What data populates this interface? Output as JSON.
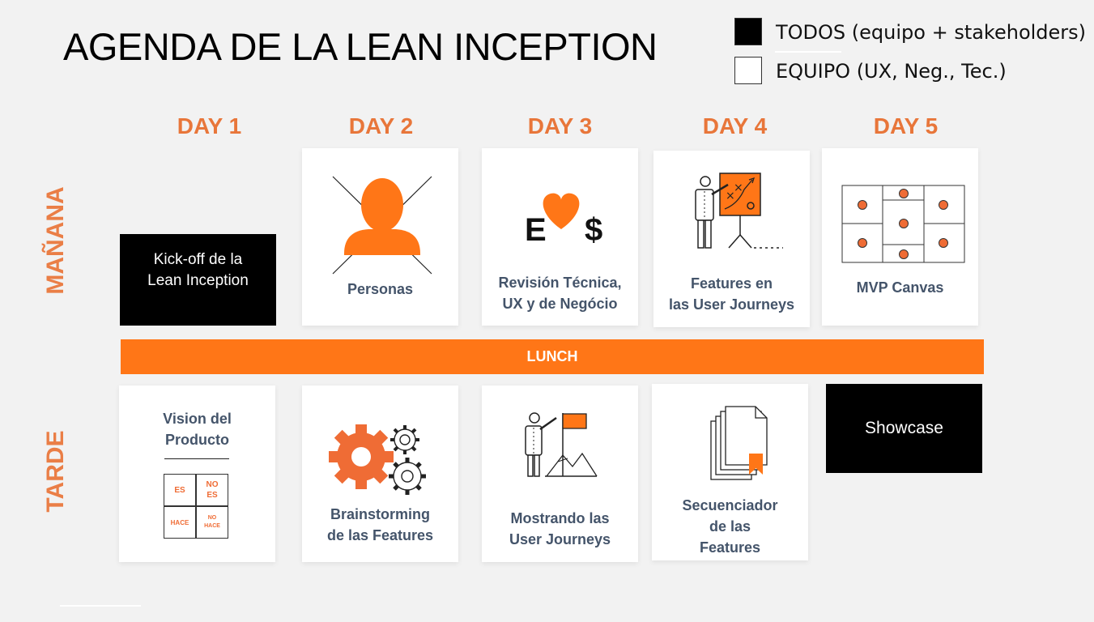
{
  "title": "AGENDA DE LA LEAN INCEPTION",
  "legend": [
    {
      "label": "TODOS (equipo + stakeholders)",
      "color": "#000000"
    },
    {
      "label": "EQUIPO (UX, Neg., Tec.)",
      "color": "#ffffff"
    }
  ],
  "days": [
    "DAY 1",
    "DAY 2",
    "DAY 3",
    "DAY 4",
    "DAY 5"
  ],
  "rows": {
    "morning": "MAÑANA",
    "afternoon": "TARDE"
  },
  "lunch": "LUNCH",
  "morning": [
    {
      "line1": "Kick-off de la",
      "line2": "Lean Inception",
      "type": "todos"
    },
    {
      "line1": "Personas",
      "type": "equipo",
      "icon": "person-crossed-icon"
    },
    {
      "line1": "Revisión Técnica,",
      "line2": "UX y de Negócio",
      "type": "equipo",
      "icon": "e-heart-dollar-icon",
      "icon_e": "E",
      "icon_dollar": "$"
    },
    {
      "line1": "Features en",
      "line2": "las User Journeys",
      "type": "equipo",
      "icon": "presenter-board-icon"
    },
    {
      "line1": "MVP Canvas",
      "type": "equipo",
      "icon": "canvas-grid-icon"
    }
  ],
  "afternoon": [
    {
      "line1": "Vision del",
      "line2": "Producto",
      "type": "equipo",
      "icon": "is-isnot-grid-icon",
      "grid": {
        "es": "ES",
        "no_es_1": "NO",
        "no_es_2": "ES",
        "hace": "HACE",
        "no_hace_1": "NO",
        "no_hace_2": "HACE"
      }
    },
    {
      "line1": "Brainstorming",
      "line2": "de las Features",
      "type": "equipo",
      "icon": "gears-icon"
    },
    {
      "line1": "Mostrando las",
      "line2": "User Journeys",
      "type": "equipo",
      "icon": "presenter-flag-mountain-icon"
    },
    {
      "line1": "Secuenciador",
      "line2": "de las",
      "line3": "Features",
      "type": "equipo",
      "icon": "documents-stack-icon"
    },
    {
      "line1": "Showcase",
      "type": "todos"
    }
  ],
  "colors": {
    "accent": "#ff7617",
    "day_text": "#e8763a",
    "label_text": "#44546a",
    "background": "#f2f2f2"
  }
}
